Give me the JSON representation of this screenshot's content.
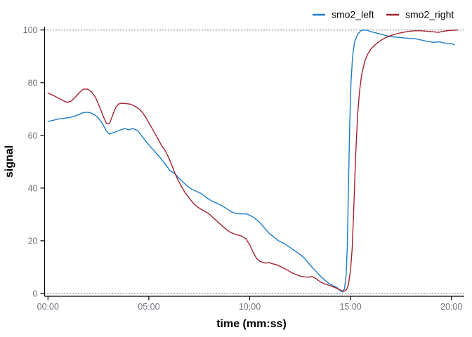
{
  "chart_data": {
    "type": "line",
    "title": "",
    "xlabel": "time (mm:ss)",
    "ylabel": "signal",
    "x_unit": "minutes",
    "xlim": [
      0,
      20.4
    ],
    "ylim": [
      0,
      100
    ],
    "grid": false,
    "legend_position": "top",
    "axis_tick_label_color": "#6f737b",
    "axis_line_color": "#000000",
    "x_ticks": {
      "values": [
        0,
        5,
        10,
        15,
        20
      ],
      "labels": [
        "00:00",
        "05:00",
        "10:00",
        "15:00",
        "20:00"
      ]
    },
    "y_ticks": {
      "values": [
        0,
        20,
        40,
        60,
        80,
        100
      ],
      "labels": [
        "0",
        "20",
        "40",
        "60",
        "80",
        "100"
      ]
    },
    "reference_lines": [
      {
        "y": 0,
        "style": "dotted",
        "color": "#000000"
      },
      {
        "y": 100,
        "style": "dotted",
        "color": "#000000"
      }
    ],
    "series": [
      {
        "name": "smo2_left",
        "color": "#1b7bca",
        "points": [
          [
            0,
            65.3
          ],
          [
            0.25,
            65.7
          ],
          [
            0.5,
            66.2
          ],
          [
            0.8,
            66.5
          ],
          [
            1.1,
            66.8
          ],
          [
            1.4,
            67.5
          ],
          [
            1.7,
            68.5
          ],
          [
            1.9,
            68.8
          ],
          [
            2.1,
            68.6
          ],
          [
            2.3,
            67.9
          ],
          [
            2.5,
            66.6
          ],
          [
            2.7,
            64.5
          ],
          [
            2.9,
            61.6
          ],
          [
            3.05,
            60.5
          ],
          [
            3.2,
            60.9
          ],
          [
            3.5,
            61.8
          ],
          [
            3.8,
            62.6
          ],
          [
            4.0,
            62.1
          ],
          [
            4.2,
            62.6
          ],
          [
            4.45,
            61.8
          ],
          [
            4.65,
            59.8
          ],
          [
            4.85,
            57.8
          ],
          [
            5.05,
            55.9
          ],
          [
            5.25,
            54.3
          ],
          [
            5.45,
            52.5
          ],
          [
            5.65,
            50.7
          ],
          [
            5.85,
            48.7
          ],
          [
            6.05,
            46.6
          ],
          [
            6.3,
            45.4
          ],
          [
            6.6,
            42.9
          ],
          [
            6.9,
            40.8
          ],
          [
            7.15,
            39.5
          ],
          [
            7.4,
            38.6
          ],
          [
            7.6,
            37.9
          ],
          [
            7.85,
            36.4
          ],
          [
            8.1,
            35.2
          ],
          [
            8.35,
            34.3
          ],
          [
            8.6,
            33.4
          ],
          [
            8.85,
            32.2
          ],
          [
            9.1,
            31.0
          ],
          [
            9.3,
            30.4
          ],
          [
            9.55,
            30.2
          ],
          [
            9.85,
            30.2
          ],
          [
            10.05,
            29.5
          ],
          [
            10.25,
            28.6
          ],
          [
            10.5,
            26.9
          ],
          [
            10.75,
            24.7
          ],
          [
            11.0,
            22.6
          ],
          [
            11.2,
            21.4
          ],
          [
            11.45,
            19.9
          ],
          [
            11.7,
            19.0
          ],
          [
            11.95,
            17.7
          ],
          [
            12.2,
            16.4
          ],
          [
            12.45,
            15.1
          ],
          [
            12.7,
            13.5
          ],
          [
            12.95,
            11.2
          ],
          [
            13.2,
            9.1
          ],
          [
            13.45,
            7.0
          ],
          [
            13.7,
            5.2
          ],
          [
            13.95,
            3.7
          ],
          [
            14.15,
            2.9
          ],
          [
            14.35,
            2.1
          ],
          [
            14.5,
            1.0
          ],
          [
            14.6,
            0.6
          ],
          [
            14.7,
            1.8
          ],
          [
            14.78,
            7
          ],
          [
            14.84,
            18
          ],
          [
            14.9,
            42
          ],
          [
            14.96,
            65
          ],
          [
            15.02,
            80
          ],
          [
            15.1,
            90
          ],
          [
            15.2,
            95.5
          ],
          [
            15.35,
            98.3
          ],
          [
            15.5,
            99.7
          ],
          [
            15.65,
            100
          ],
          [
            15.8,
            99.9
          ],
          [
            16.0,
            99.4
          ],
          [
            16.25,
            98.9
          ],
          [
            16.5,
            98.4
          ],
          [
            16.8,
            97.8
          ],
          [
            17.1,
            97.4
          ],
          [
            17.5,
            97.1
          ],
          [
            17.9,
            96.8
          ],
          [
            18.2,
            96.7
          ],
          [
            18.5,
            96.2
          ],
          [
            18.8,
            95.7
          ],
          [
            19.1,
            95.3
          ],
          [
            19.4,
            95.5
          ],
          [
            19.7,
            95.0
          ],
          [
            20.0,
            94.8
          ],
          [
            20.15,
            94.4
          ]
        ]
      },
      {
        "name": "smo2_right",
        "color": "#a2222e",
        "points": [
          [
            0,
            76.1
          ],
          [
            0.25,
            75.2
          ],
          [
            0.5,
            74.2
          ],
          [
            0.75,
            73.2
          ],
          [
            0.95,
            72.5
          ],
          [
            1.15,
            73.0
          ],
          [
            1.35,
            74.5
          ],
          [
            1.55,
            76.2
          ],
          [
            1.75,
            77.5
          ],
          [
            1.95,
            77.6
          ],
          [
            2.15,
            76.6
          ],
          [
            2.35,
            74.5
          ],
          [
            2.55,
            71.0
          ],
          [
            2.75,
            67.0
          ],
          [
            2.9,
            64.5
          ],
          [
            3.05,
            64.6
          ],
          [
            3.2,
            67.5
          ],
          [
            3.35,
            70.5
          ],
          [
            3.5,
            71.9
          ],
          [
            3.65,
            72.2
          ],
          [
            3.8,
            72.1
          ],
          [
            3.95,
            72.0
          ],
          [
            4.1,
            71.8
          ],
          [
            4.25,
            71.3
          ],
          [
            4.4,
            70.6
          ],
          [
            4.55,
            69.8
          ],
          [
            4.7,
            68.5
          ],
          [
            4.85,
            66.8
          ],
          [
            5.0,
            64.8
          ],
          [
            5.15,
            62.8
          ],
          [
            5.3,
            60.8
          ],
          [
            5.45,
            58.7
          ],
          [
            5.6,
            56.6
          ],
          [
            5.8,
            54.3
          ],
          [
            6.0,
            51.3
          ],
          [
            6.15,
            48.5
          ],
          [
            6.3,
            45.5
          ],
          [
            6.45,
            43.0
          ],
          [
            6.6,
            40.8
          ],
          [
            6.8,
            38.2
          ],
          [
            7.0,
            36.3
          ],
          [
            7.2,
            34.3
          ],
          [
            7.4,
            32.9
          ],
          [
            7.6,
            31.9
          ],
          [
            7.8,
            31.1
          ],
          [
            8.0,
            30.1
          ],
          [
            8.2,
            28.7
          ],
          [
            8.4,
            27.3
          ],
          [
            8.6,
            25.9
          ],
          [
            8.8,
            24.6
          ],
          [
            9.0,
            23.4
          ],
          [
            9.2,
            22.7
          ],
          [
            9.4,
            22.2
          ],
          [
            9.6,
            21.8
          ],
          [
            9.8,
            20.8
          ],
          [
            10.0,
            18.5
          ],
          [
            10.2,
            15.2
          ],
          [
            10.35,
            13.2
          ],
          [
            10.5,
            12.2
          ],
          [
            10.65,
            11.8
          ],
          [
            10.8,
            11.5
          ],
          [
            10.95,
            11.8
          ],
          [
            11.1,
            11.3
          ],
          [
            11.3,
            11.0
          ],
          [
            11.5,
            10.3
          ],
          [
            11.7,
            9.5
          ],
          [
            11.9,
            8.7
          ],
          [
            12.1,
            7.8
          ],
          [
            12.3,
            7.2
          ],
          [
            12.5,
            6.6
          ],
          [
            12.7,
            6.3
          ],
          [
            12.9,
            6.2
          ],
          [
            13.1,
            6.4
          ],
          [
            13.3,
            5.6
          ],
          [
            13.5,
            4.4
          ],
          [
            13.7,
            3.7
          ],
          [
            13.9,
            3.2
          ],
          [
            14.1,
            2.6
          ],
          [
            14.3,
            2.0
          ],
          [
            14.5,
            1.3
          ],
          [
            14.65,
            0.8
          ],
          [
            14.8,
            1.4
          ],
          [
            14.9,
            3.5
          ],
          [
            15.0,
            9
          ],
          [
            15.08,
            17
          ],
          [
            15.15,
            30
          ],
          [
            15.25,
            52
          ],
          [
            15.35,
            68
          ],
          [
            15.45,
            77
          ],
          [
            15.55,
            83
          ],
          [
            15.7,
            88
          ],
          [
            15.85,
            90.8
          ],
          [
            16.0,
            92.7
          ],
          [
            16.2,
            94.3
          ],
          [
            16.4,
            95.5
          ],
          [
            16.6,
            96.5
          ],
          [
            16.8,
            97.3
          ],
          [
            17.0,
            97.9
          ],
          [
            17.3,
            98.6
          ],
          [
            17.6,
            99.1
          ],
          [
            17.9,
            99.5
          ],
          [
            18.2,
            99.7
          ],
          [
            18.5,
            99.7
          ],
          [
            18.8,
            99.5
          ],
          [
            19.1,
            99.3
          ],
          [
            19.35,
            99.1
          ],
          [
            19.6,
            99.5
          ],
          [
            19.85,
            99.8
          ],
          [
            20.1,
            99.9
          ],
          [
            20.3,
            100
          ]
        ]
      }
    ]
  }
}
